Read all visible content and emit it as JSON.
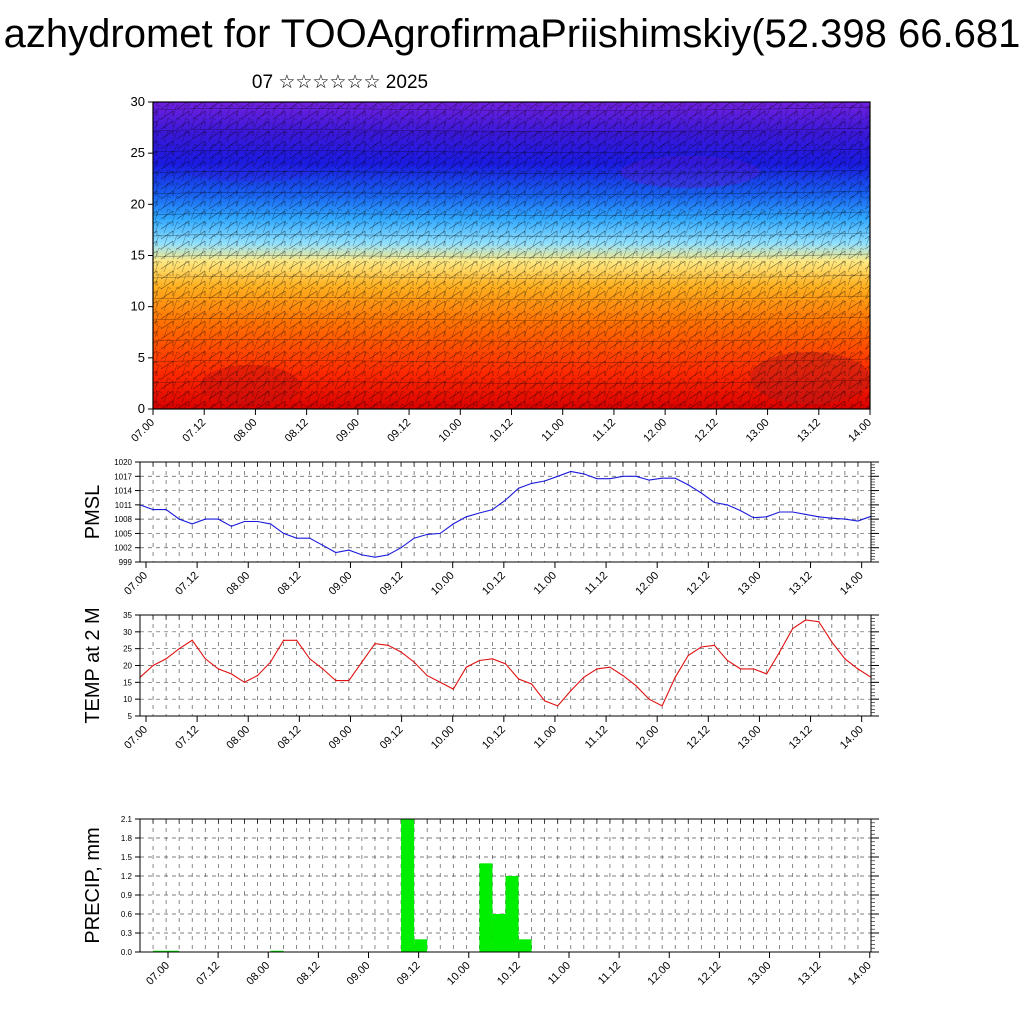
{
  "header": {
    "title": "azhydromet for TOOAgrofirmaPriishimskiy(52.398 66.681",
    "subtitle": "07 ☆☆☆☆☆☆ 2025"
  },
  "time_ticks": [
    "07.00",
    "07.12",
    "08.00",
    "08.12",
    "09.00",
    "09.12",
    "10.00",
    "10.12",
    "11.00",
    "11.12",
    "12.00",
    "12.12",
    "13.00",
    "13.12",
    "14.00"
  ],
  "colors": {
    "pmsl_line": "#1a1adb",
    "temp_line": "#e01010",
    "precip_bar": "#00ee00",
    "grid": "#555555"
  },
  "chart_data": [
    {
      "type": "heatmap",
      "title": "",
      "ylabel": "",
      "ylim": [
        0,
        30
      ],
      "yticks": [
        "0",
        "5",
        "10",
        "15",
        "20",
        "25",
        "30"
      ],
      "xticks_ref": "time_ticks",
      "color_scale": [
        "#d80000",
        "#ff4400",
        "#ff8c00",
        "#ffc020",
        "#ffee88",
        "#70d8ff",
        "#2090ff",
        "#1a3af0",
        "#2010d0",
        "#7020e0"
      ],
      "overlay": "wind barbs"
    },
    {
      "type": "line",
      "ylabel": "PMSL",
      "ylim": [
        999,
        1020
      ],
      "yticks": [
        "999",
        "1002",
        "1005",
        "1008",
        "1011",
        "1014",
        "1017",
        "1020"
      ],
      "x_start": "07.00",
      "x_step_hours": 3,
      "values": [
        1011,
        1010,
        1010,
        1008,
        1007,
        1008,
        1008,
        1006.5,
        1007.5,
        1007.5,
        1007,
        1005,
        1004,
        1004,
        1002.5,
        1001,
        1001.5,
        1000.5,
        1000,
        1000.5,
        1002,
        1004,
        1004.8,
        1005,
        1007,
        1008.5,
        1009.3,
        1010,
        1012,
        1014.5,
        1015.5,
        1016,
        1017,
        1018,
        1017.5,
        1016.5,
        1016.5,
        1017,
        1017,
        1016.2,
        1016.6,
        1016.6,
        1015.2,
        1013.5,
        1011.5,
        1011,
        1009.8,
        1008.3,
        1008.5,
        1009.5,
        1009.5,
        1009,
        1008.5,
        1008.2,
        1008,
        1007.6,
        1008.6
      ]
    },
    {
      "type": "line",
      "ylabel": "TEMP at 2 M",
      "ylim": [
        5,
        35
      ],
      "yticks": [
        "5",
        "10",
        "15",
        "20",
        "25",
        "30",
        "35"
      ],
      "x_start": "07.00",
      "x_step_hours": 3,
      "values": [
        16.5,
        20,
        22,
        25,
        27.5,
        22,
        19,
        17.5,
        15,
        17,
        21,
        27.5,
        27.5,
        22,
        19,
        15.5,
        15.5,
        21,
        26.5,
        26,
        24,
        21,
        17,
        15,
        13,
        19.5,
        21.5,
        22,
        20.5,
        16,
        14.5,
        9.5,
        8,
        12.5,
        16.5,
        19,
        19.5,
        17,
        14,
        10,
        8,
        16.5,
        23,
        25.5,
        26,
        21.5,
        19,
        19,
        17.5,
        24,
        31,
        33.5,
        33,
        27,
        22,
        19,
        16.5
      ]
    },
    {
      "type": "bar",
      "ylabel": "PRECIP, mm",
      "ylim": [
        0,
        2.1
      ],
      "yticks": [
        "0.0",
        "0.3",
        "0.6",
        "0.9",
        "1.2",
        "1.5",
        "1.8",
        "2.1"
      ],
      "x_start": "07.00",
      "x_step_hours": 3,
      "values": [
        0,
        0.02,
        0.02,
        0,
        0,
        0,
        0,
        0,
        0,
        0,
        0.02,
        0,
        0,
        0,
        0,
        0,
        0,
        0,
        0,
        0,
        2.1,
        0.2,
        0,
        0,
        0,
        0,
        1.4,
        0.6,
        1.2,
        0.2,
        0,
        0,
        0,
        0,
        0,
        0,
        0,
        0,
        0,
        0,
        0,
        0,
        0,
        0,
        0,
        0,
        0,
        0,
        0,
        0,
        0,
        0,
        0,
        0,
        0,
        0
      ]
    }
  ]
}
